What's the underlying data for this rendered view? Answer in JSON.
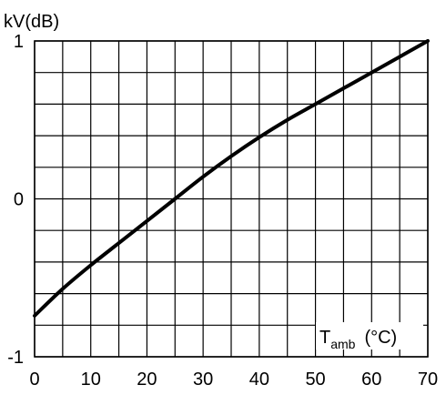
{
  "chart_data": {
    "type": "line",
    "ylabel": "kV(dB)",
    "xlabel_main": "T",
    "xlabel_sub": "amb",
    "xlabel_unit": "(°C)",
    "xlim": [
      0,
      70
    ],
    "ylim": [
      -1,
      1
    ],
    "x_ticks": [
      0,
      10,
      20,
      30,
      40,
      50,
      60,
      70
    ],
    "x_tick_labels": [
      "0",
      "10",
      "20",
      "30",
      "40",
      "50",
      "60",
      "70"
    ],
    "y_ticks": [
      -1,
      0,
      1
    ],
    "y_tick_labels": [
      "-1",
      "0",
      "1"
    ],
    "grid": true,
    "series": [
      {
        "x": [
          0,
          5,
          10,
          15,
          20,
          25,
          30,
          35,
          40,
          45,
          50,
          55,
          60,
          65,
          70
        ],
        "y": [
          -0.74,
          -0.57,
          -0.42,
          -0.28,
          -0.14,
          0.0,
          0.14,
          0.27,
          0.39,
          0.5,
          0.6,
          0.7,
          0.8,
          0.9,
          1.0
        ]
      }
    ]
  }
}
